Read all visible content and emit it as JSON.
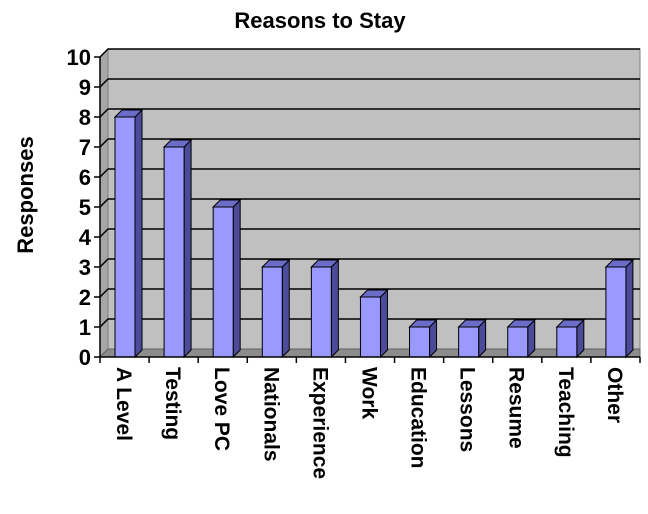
{
  "chart_data": {
    "type": "bar",
    "title": "Reasons to Stay",
    "ylabel": "Responses",
    "xlabel": "",
    "categories": [
      "A Level",
      "Testing",
      "Love PC",
      "Nationals",
      "Experience",
      "Work",
      "Education",
      "Lessons",
      "Resume",
      "Teaching",
      "Other"
    ],
    "values": [
      8,
      7,
      5,
      3,
      3,
      2,
      1,
      1,
      1,
      1,
      3
    ],
    "ylim": [
      0,
      10
    ],
    "yticks": [
      "0",
      "1",
      "2",
      "3",
      "4",
      "5",
      "6",
      "7",
      "8",
      "9",
      "10"
    ],
    "grid": true,
    "legend": "none",
    "style": "3d-column",
    "colors": {
      "bar_front": "#9999FF",
      "bar_side": "#4B4B9A",
      "bar_top": "#6B6BC8",
      "wall": "#C0C0C0",
      "floor": "#8C8C8C",
      "gridline": "#000000"
    }
  }
}
